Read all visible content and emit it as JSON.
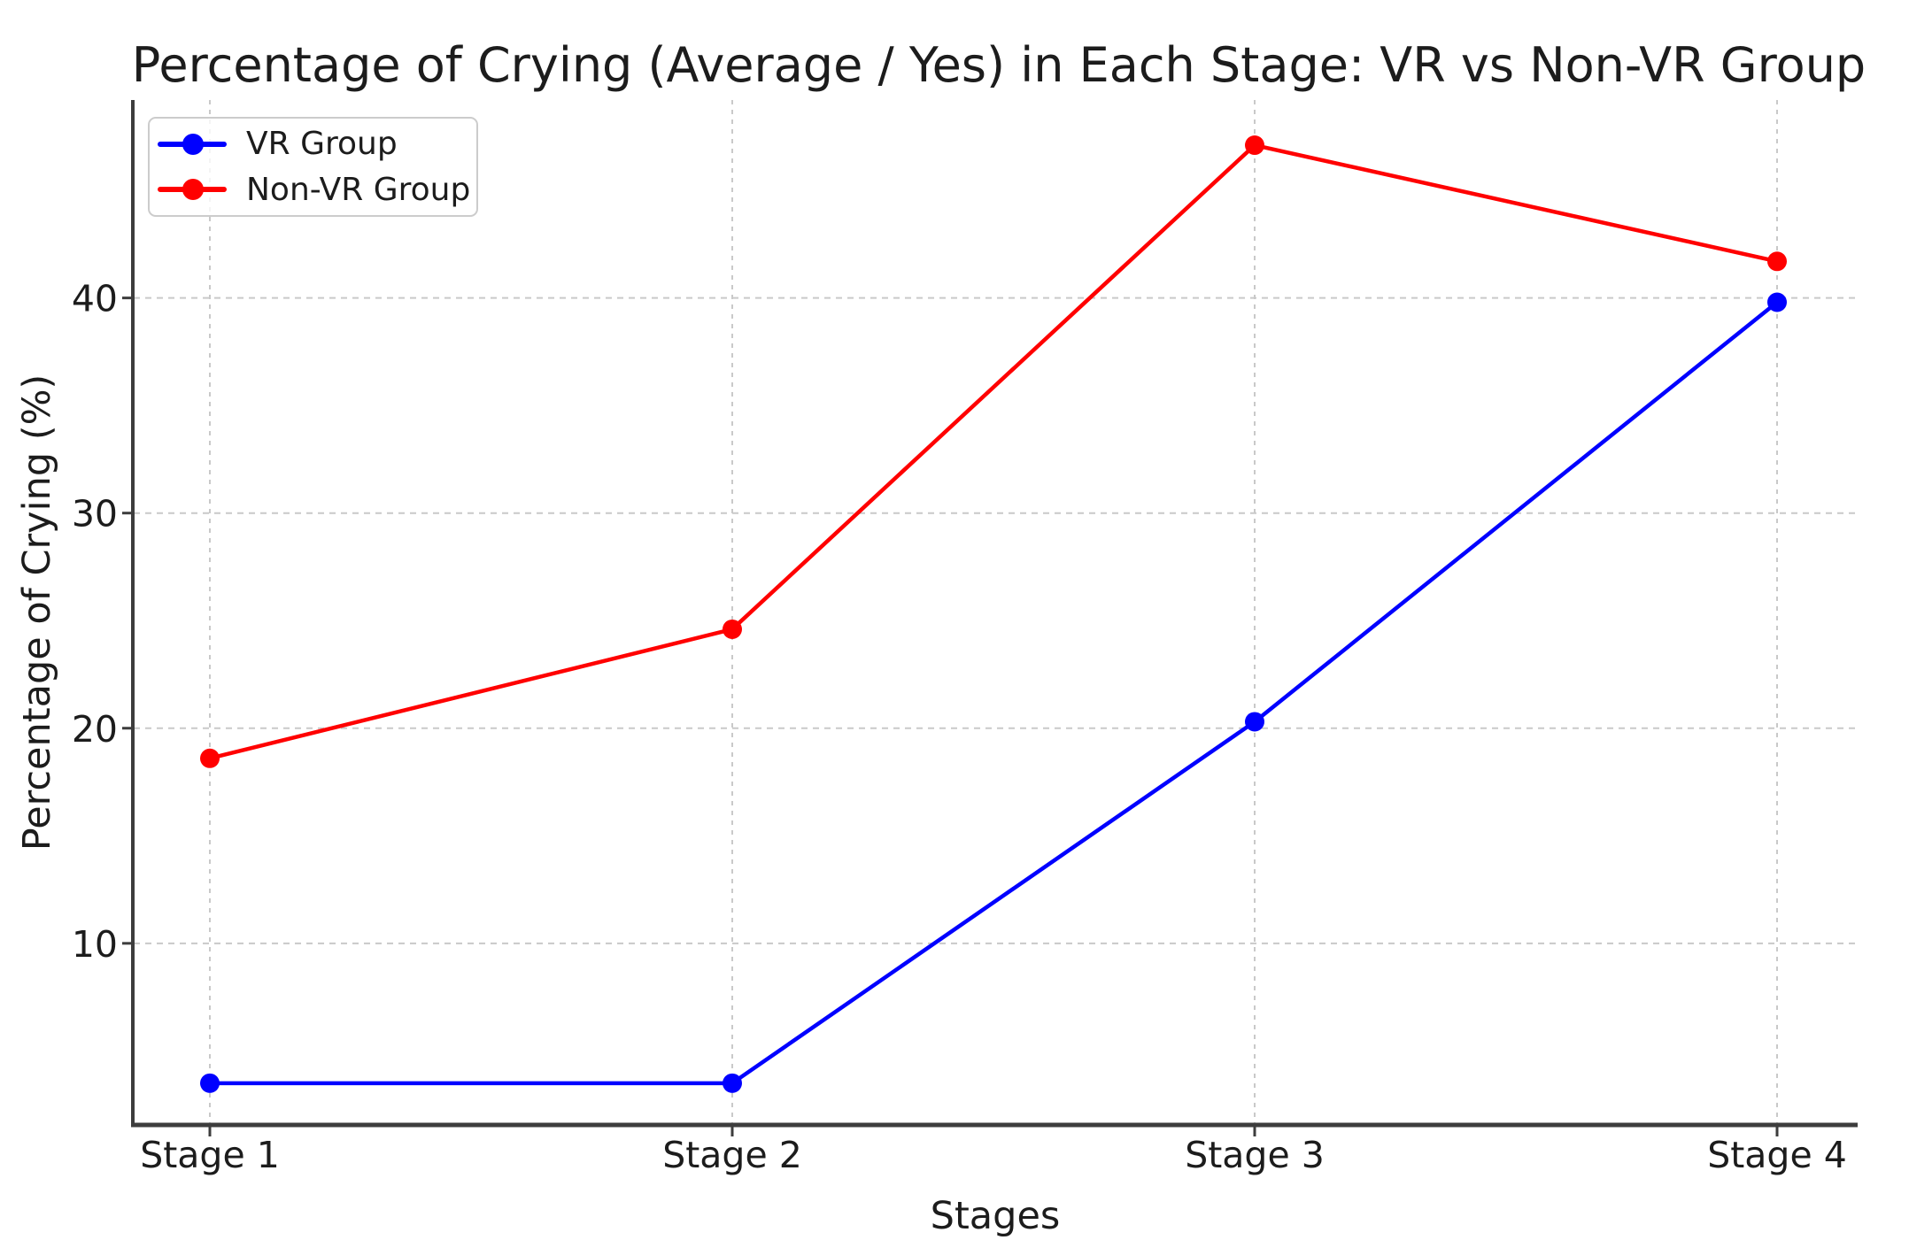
{
  "chart_data": {
    "type": "line",
    "title": "Percentage of Crying (Average / Yes) in Each Stage: VR vs Non-VR Group",
    "xlabel": "Stages",
    "ylabel": "Percentage of Crying (%)",
    "categories": [
      "Stage 1",
      "Stage 2",
      "Stage 3",
      "Stage 4"
    ],
    "series": [
      {
        "name": "VR Group",
        "color": "#0000ff",
        "values": [
          3.5,
          3.5,
          20.3,
          39.8
        ]
      },
      {
        "name": "Non-VR Group",
        "color": "#ff0000",
        "values": [
          18.6,
          24.6,
          47.1,
          41.7
        ]
      }
    ],
    "yticks": [
      10,
      20,
      30,
      40
    ],
    "ylim": [
      1.6,
      49.2
    ],
    "grid": true,
    "grid_style": "dashed",
    "legend_position": "upper left",
    "marker": "circle",
    "colors": {
      "text": "#1c1c1c",
      "spine": "#3d3d3d",
      "gridline": "#c9c9c9",
      "background": "#ffffff"
    }
  }
}
